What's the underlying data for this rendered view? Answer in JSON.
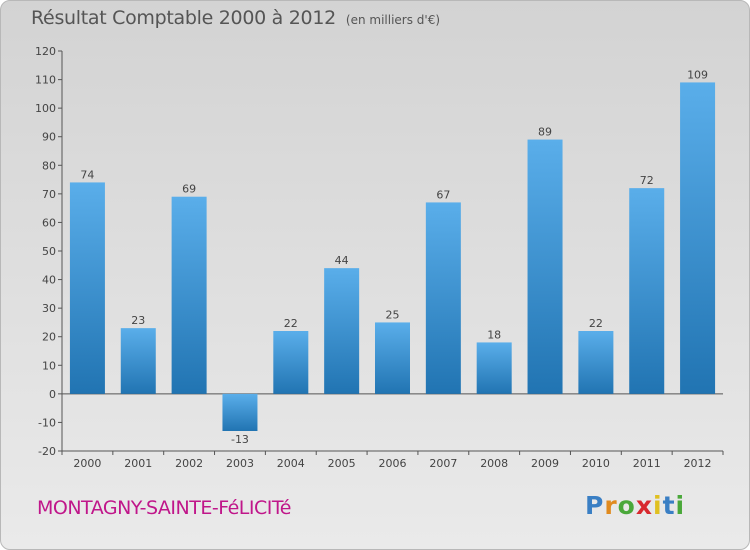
{
  "header": {
    "title": "Résultat Comptable 2000 à 2012",
    "unit": "(en milliers d'€)"
  },
  "footer": {
    "commune": "MONTAGNY-SAINTE-FéLICITé",
    "logo": "Proxiti"
  },
  "colors": {
    "bar_top": "#5aaeea",
    "bar_bottom": "#2174b2",
    "commune_text": "#c0168a"
  },
  "chart_data": {
    "type": "bar",
    "title": "Résultat Comptable 2000 à 2012",
    "subtitle": "(en milliers d'€)",
    "xlabel": "",
    "ylabel": "",
    "categories": [
      "2000",
      "2001",
      "2002",
      "2003",
      "2004",
      "2005",
      "2006",
      "2007",
      "2008",
      "2009",
      "2010",
      "2011",
      "2012"
    ],
    "values": [
      74,
      23,
      69,
      -13,
      22,
      44,
      25,
      67,
      18,
      89,
      22,
      72,
      109
    ],
    "ylim": [
      -20,
      120
    ],
    "yticks": [
      -20,
      -10,
      0,
      10,
      20,
      30,
      40,
      50,
      60,
      70,
      80,
      90,
      100,
      110,
      120
    ],
    "grid": false
  }
}
